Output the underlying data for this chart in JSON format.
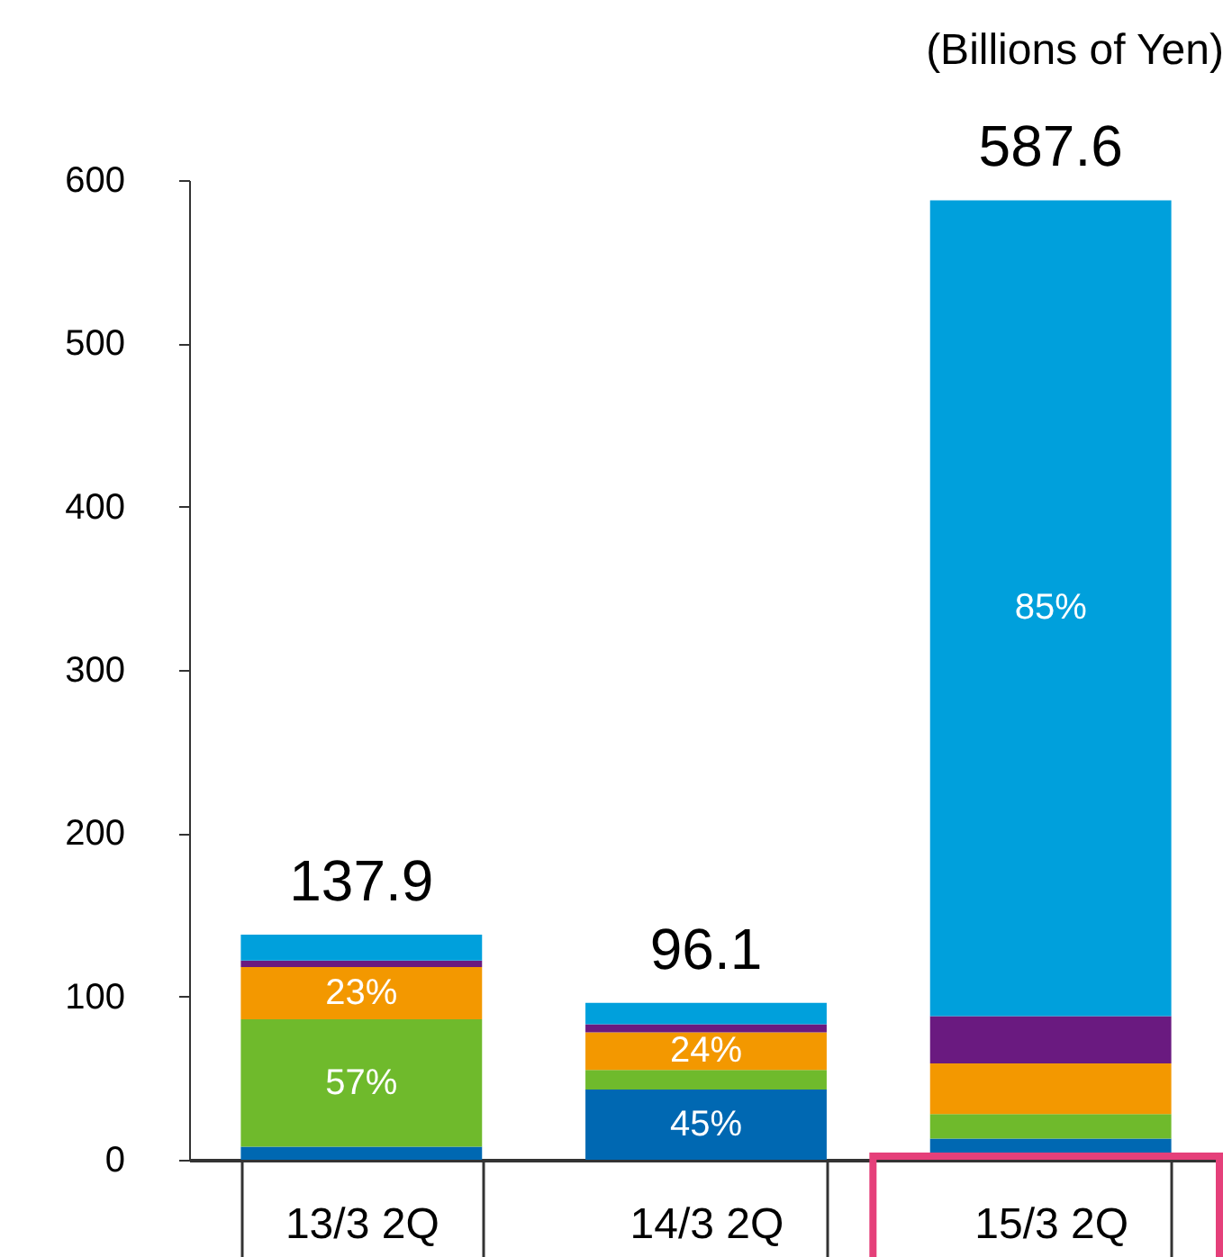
{
  "chart_data": {
    "type": "bar",
    "stacked": true,
    "ylabel": "(Billions of Yen)",
    "categories": [
      "13/3  2Q",
      "14/3  2Q",
      "15/3  2Q"
    ],
    "ylim": [
      0,
      600
    ],
    "yticks": [
      0,
      100,
      200,
      300,
      400,
      500,
      600
    ],
    "grid": false,
    "legend": false,
    "series": [
      {
        "color": "#0068b2",
        "values": [
          8,
          43,
          13
        ]
      },
      {
        "color": "#6fba2c",
        "values": [
          78,
          12,
          15
        ]
      },
      {
        "color": "#f39800",
        "values": [
          32,
          23,
          31
        ]
      },
      {
        "color": "#6a1a80",
        "values": [
          4,
          5,
          29
        ]
      },
      {
        "color": "#00a0dc",
        "values": [
          15.9,
          13.1,
          499.6
        ]
      }
    ],
    "totals": [
      "137.9",
      "96.1",
      "587.6"
    ],
    "annotations": [
      {
        "text": "45%",
        "x": "14/3  2Q",
        "y": 43
      },
      {
        "text": "57%",
        "x": "13/3  2Q",
        "y": 86
      },
      {
        "text": "23%",
        "x": "13/3  2Q",
        "y": 118
      },
      {
        "text": "24%",
        "x": "14/3  2Q",
        "y": 78
      },
      "85%"
    ]
  }
}
